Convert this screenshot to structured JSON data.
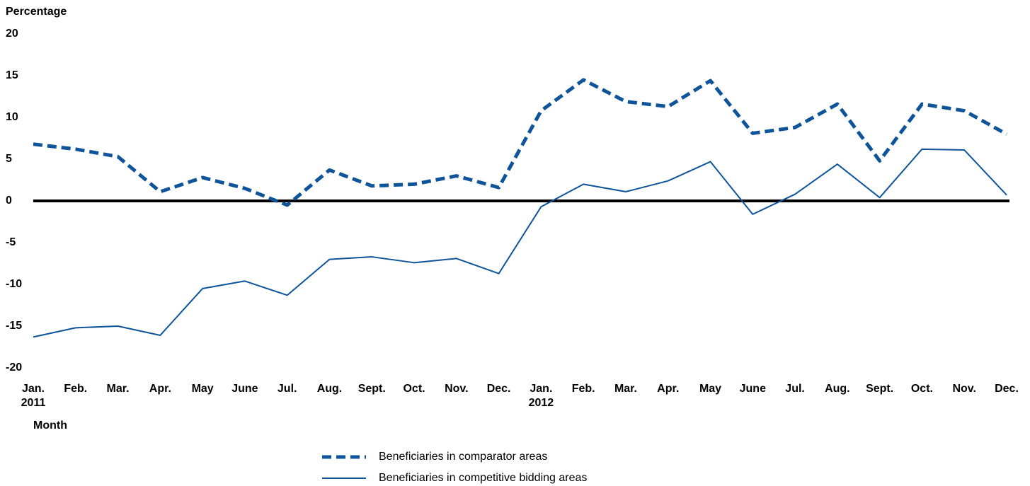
{
  "chart_data": {
    "type": "line",
    "y_label": "Percentage",
    "x_label": "Month",
    "categories": [
      "Jan. 2011",
      "Feb.",
      "Mar.",
      "Apr.",
      "May",
      "June",
      "Jul.",
      "Aug.",
      "Sept.",
      "Oct.",
      "Nov.",
      "Dec.",
      "Jan. 2012",
      "Feb.",
      "Mar.",
      "Apr.",
      "May",
      "June",
      "Jul.",
      "Aug.",
      "Sept.",
      "Oct.",
      "Nov.",
      "Dec."
    ],
    "series": [
      {
        "name": "Beneficiaries in comparator areas",
        "color": "#0f5499",
        "style": "dashed",
        "values": [
          6.8,
          6.2,
          5.3,
          1.1,
          2.8,
          1.5,
          -0.5,
          3.7,
          1.8,
          2.0,
          3.0,
          1.6,
          10.8,
          14.5,
          11.9,
          11.3,
          14.4,
          8.1,
          8.8,
          11.6,
          4.8,
          11.6,
          10.8,
          8.0
        ]
      },
      {
        "name": "Beneficiaries in competitive bidding areas",
        "color": "#0f5499",
        "style": "solid",
        "values": [
          -16.3,
          -15.2,
          -15.0,
          -16.1,
          -10.5,
          -9.6,
          -11.3,
          -7.0,
          -6.7,
          -7.4,
          -6.9,
          -8.7,
          -0.7,
          2.0,
          1.1,
          2.4,
          4.7,
          -1.6,
          0.8,
          4.4,
          0.4,
          6.2,
          6.1,
          0.7
        ]
      }
    ],
    "ylim": [
      -20,
      20
    ],
    "yticks": [
      -20,
      -15,
      -10,
      -5,
      0,
      5,
      10,
      15,
      20
    ],
    "grid": false
  }
}
